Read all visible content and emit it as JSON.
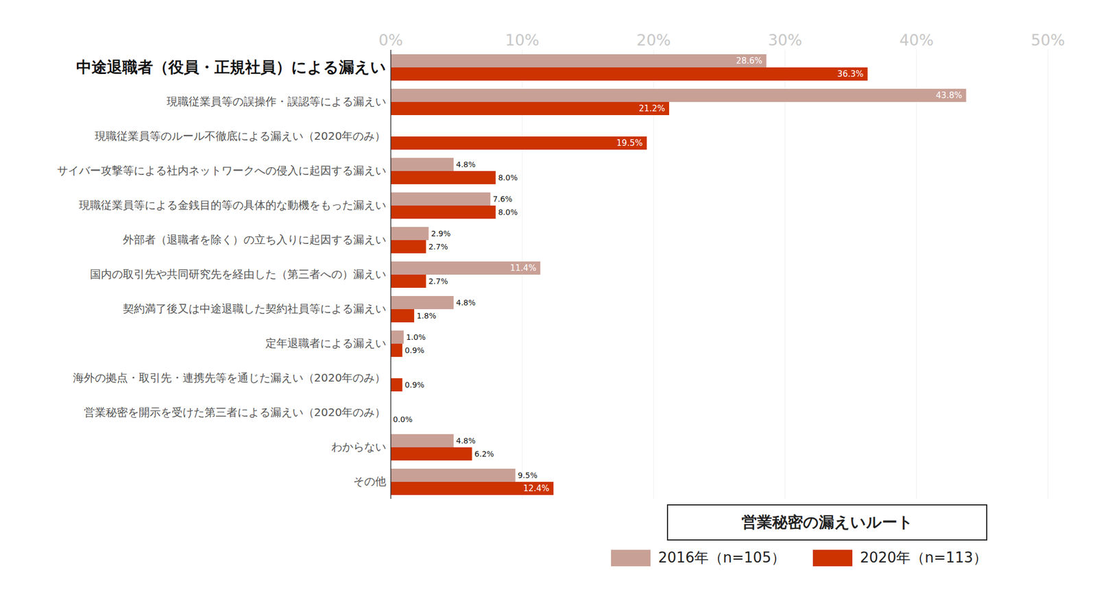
{
  "chart_data": {
    "type": "bar",
    "title": "営業秘密の漏えいルート",
    "orientation": "horizontal",
    "grid": true,
    "data_labels": true,
    "legend": "bottom",
    "categories": [
      "中途退職者（役員・正規社員）による漏えい",
      "現職従業員等の誤操作・誤認等による漏えい",
      "現職従業員等のルール不徹底による漏えい（2020年のみ）",
      "サイバー攻撃等による社内ネットワークへの侵入に起因する漏えい",
      "現職従業員等による金銭目的等の具体的な動機をもった漏えい",
      "外部者（退職者を除く）の立ち入りに起因する漏えい",
      "国内の取引先や共同研究先を経由した（第三者への）漏えい",
      "契約満了後又は中途退職した契約社員等による漏えい",
      "定年退職者による漏えい",
      "海外の拠点・取引先・連携先等を通じた漏えい（2020年のみ）",
      "営業秘密を開示を受けた第三者による漏えい（2020年のみ）",
      "わからない",
      "その他"
    ],
    "series": [
      {
        "name": "2016年（n=105）",
        "color": "#c9a096",
        "values": [
          28.6,
          43.8,
          null,
          4.8,
          7.6,
          2.9,
          11.4,
          4.8,
          1.0,
          null,
          null,
          4.8,
          9.5
        ],
        "value_labels": [
          "28.6%",
          "43.8%",
          null,
          "4.8%",
          "7.6%",
          "2.9%",
          "11.4%",
          "4.8%",
          "1.0%",
          null,
          null,
          "4.8%",
          "9.5%"
        ]
      },
      {
        "name": "2020年（n=113）",
        "color": "#cc3300",
        "values": [
          36.3,
          21.2,
          19.5,
          8.0,
          8.0,
          2.7,
          2.7,
          1.8,
          0.9,
          0.9,
          0.0,
          6.2,
          12.4
        ],
        "value_labels": [
          "36.3%",
          "21.2%",
          "19.5%",
          "8.0%",
          "8.0%",
          "2.7%",
          "2.7%",
          "1.8%",
          "0.9%",
          "0.9%",
          "0.0%",
          "6.2%",
          "12.4%"
        ]
      }
    ],
    "xlim": [
      0,
      50
    ],
    "xticks": [
      {
        "value": 0,
        "label": "0%"
      },
      {
        "value": 10,
        "label": "10%"
      },
      {
        "value": 20,
        "label": "20%"
      },
      {
        "value": 30,
        "label": "30%"
      },
      {
        "value": 40,
        "label": "40%"
      },
      {
        "value": 50,
        "label": "50%"
      }
    ]
  }
}
